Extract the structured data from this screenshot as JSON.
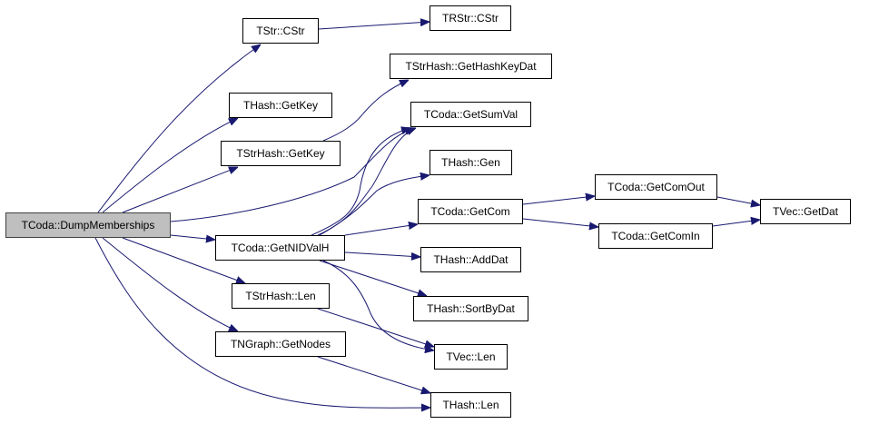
{
  "colors": {
    "edge": "#191970",
    "root_fill": "#bfbfbf",
    "node_fill": "#ffffff"
  },
  "nodes": {
    "root": "TCoda::DumpMemberships",
    "tstr_cstr": "TStr::CStr",
    "trstr_cstr": "TRStr::CStr",
    "thash_getkey": "THash::GetKey",
    "tstrhash_getkey": "TStrHash::GetKey",
    "tstrhash_gethashkeydat": "TStrHash::GetHashKeyDat",
    "tcoda_getsumval": "TCoda::GetSumVal",
    "thash_gen": "THash::Gen",
    "tcoda_getnidvalh": "TCoda::GetNIDValH",
    "tcoda_getcom": "TCoda::GetCom",
    "tcoda_getcomout": "TCoda::GetComOut",
    "tcoda_getcomin": "TCoda::GetComIn",
    "tvec_getdat": "TVec::GetDat",
    "thash_adddat": "THash::AddDat",
    "thash_sortbydat": "THash::SortByDat",
    "tstrhash_len": "TStrHash::Len",
    "tvec_len": "TVec::Len",
    "tngraph_getnodes": "TNGraph::GetNodes",
    "thash_len": "THash::Len"
  },
  "edges": [
    [
      "root",
      "tstr_cstr"
    ],
    [
      "root",
      "thash_getkey"
    ],
    [
      "root",
      "tstrhash_getkey"
    ],
    [
      "root",
      "tcoda_getsumval"
    ],
    [
      "root",
      "tcoda_getnidvalh"
    ],
    [
      "root",
      "tstrhash_len"
    ],
    [
      "root",
      "tngraph_getnodes"
    ],
    [
      "root",
      "thash_len"
    ],
    [
      "tstr_cstr",
      "trstr_cstr"
    ],
    [
      "tstrhash_getkey",
      "tstrhash_gethashkeydat"
    ],
    [
      "tcoda_getnidvalh",
      "tcoda_getsumval"
    ],
    [
      "tcoda_getnidvalh",
      "thash_gen"
    ],
    [
      "tcoda_getnidvalh",
      "tcoda_getcom"
    ],
    [
      "tcoda_getnidvalh",
      "thash_adddat"
    ],
    [
      "tcoda_getnidvalh",
      "thash_sortbydat"
    ],
    [
      "tcoda_getnidvalh",
      "tvec_len"
    ],
    [
      "tstrhash_len",
      "tvec_len"
    ],
    [
      "tngraph_getnodes",
      "thash_len"
    ],
    [
      "tcoda_getcom",
      "tcoda_getcomout"
    ],
    [
      "tcoda_getcom",
      "tcoda_getcomin"
    ],
    [
      "tcoda_getcomout",
      "tvec_getdat"
    ],
    [
      "tcoda_getcomin",
      "tvec_getdat"
    ]
  ]
}
